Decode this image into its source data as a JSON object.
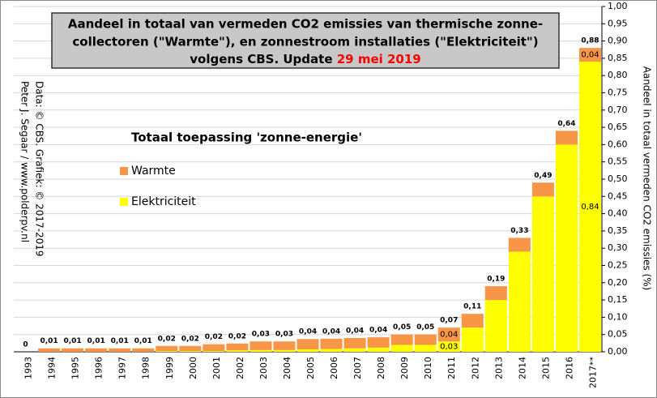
{
  "chart_data": {
    "type": "stacked_bar",
    "title_lines": [
      "Aandeel in totaal van vermeden CO2 emissies  van thermische  zonne-",
      "collectoren (\"Warmte\"), en zonnestroom installaties  (\"Elektriciteit\")",
      "volgens CBS. Update"
    ],
    "title_date": "29 mei 2019",
    "legend_title": "Totaal toepassing 'zonne-energie'",
    "credit_lines": [
      "Data: © CBS. Grafiek: © 2017-2019",
      "Peter J. Segaar / www.polderpv.nl"
    ],
    "y_label": "Aandeel in totaal vermeden  CO2 emissies (%)",
    "categories": [
      "1993",
      "1994",
      "1995",
      "1996",
      "1997",
      "1998",
      "1999",
      "2000",
      "2001",
      "2002",
      "2003",
      "2004",
      "2005",
      "2006",
      "2007",
      "2008",
      "2009",
      "2010",
      "2011",
      "2012",
      "2013",
      "2014",
      "2015",
      "2016",
      "2017**"
    ],
    "series": [
      {
        "name": "Elektriciteit",
        "color": "#ffff00",
        "values": [
          0,
          0,
          0,
          0,
          0,
          0,
          0.002,
          0.002,
          0.002,
          0.004,
          0.005,
          0.005,
          0.007,
          0.008,
          0.01,
          0.012,
          0.02,
          0.02,
          0.03,
          0.07,
          0.15,
          0.29,
          0.45,
          0.6,
          0.84
        ],
        "value_labels": [
          null,
          null,
          null,
          null,
          null,
          null,
          null,
          null,
          null,
          null,
          null,
          null,
          null,
          null,
          null,
          null,
          null,
          null,
          "0,03",
          null,
          null,
          null,
          null,
          null,
          "0,84"
        ]
      },
      {
        "name": "Warmte",
        "color": "#f79646",
        "values": [
          0,
          0.01,
          0.01,
          0.01,
          0.01,
          0.01,
          0.015,
          0.015,
          0.02,
          0.02,
          0.025,
          0.025,
          0.03,
          0.03,
          0.03,
          0.03,
          0.03,
          0.03,
          0.04,
          0.04,
          0.04,
          0.04,
          0.04,
          0.04,
          0.04
        ],
        "value_labels": [
          null,
          null,
          null,
          null,
          null,
          null,
          null,
          null,
          null,
          null,
          null,
          null,
          null,
          null,
          null,
          null,
          null,
          null,
          "0,04",
          null,
          null,
          null,
          null,
          null,
          "0,04"
        ]
      }
    ],
    "total_labels": [
      "0",
      "0,01",
      "0,01",
      "0,01",
      "0,01",
      "0,01",
      "0,02",
      "0,02",
      "0,02",
      "0,02",
      "0,03",
      "0,03",
      "0,04",
      "0,04",
      "0,04",
      "0,04",
      "0,05",
      "0,05",
      "0,07",
      "0,11",
      "0,19",
      "0,33",
      "0,49",
      "0,64",
      "0,88"
    ],
    "ylim": [
      0,
      1
    ],
    "yticks": [
      {
        "value": 0,
        "label": "0,00"
      },
      {
        "value": 0.05,
        "label": "0,05"
      },
      {
        "value": 0.1,
        "label": "0,10"
      },
      {
        "value": 0.15,
        "label": "0,15"
      },
      {
        "value": 0.2,
        "label": "0,20"
      },
      {
        "value": 0.25,
        "label": "0,25"
      },
      {
        "value": 0.3,
        "label": "0,30"
      },
      {
        "value": 0.35,
        "label": "0,35"
      },
      {
        "value": 0.4,
        "label": "0,40"
      },
      {
        "value": 0.45,
        "label": "0,45"
      },
      {
        "value": 0.5,
        "label": "0,50"
      },
      {
        "value": 0.55,
        "label": "0,55"
      },
      {
        "value": 0.6,
        "label": "0,60"
      },
      {
        "value": 0.65,
        "label": "0,65"
      },
      {
        "value": 0.7,
        "label": "0,70"
      },
      {
        "value": 0.75,
        "label": "0,75"
      },
      {
        "value": 0.8,
        "label": "0,80"
      },
      {
        "value": 0.85,
        "label": "0,85"
      },
      {
        "value": 0.9,
        "label": "0,90"
      },
      {
        "value": 0.95,
        "label": "0,95"
      },
      {
        "value": 1,
        "label": "1,00"
      }
    ],
    "grid": true
  }
}
